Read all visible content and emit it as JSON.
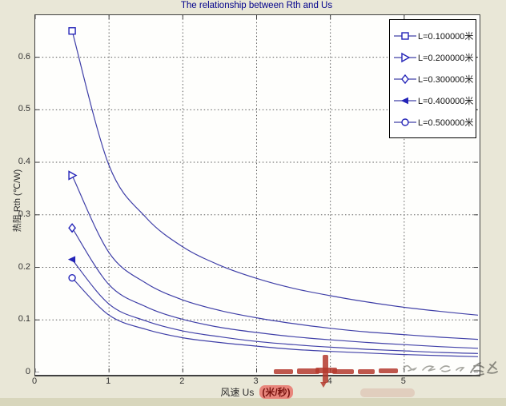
{
  "title": "The relationship between Rth and Us",
  "colors": {
    "figure_bg": "#e9e7d7",
    "figure_bg_bottom": "#d8d6bc",
    "plot_bg": "#fefefc",
    "grid": "#5c5c5c",
    "axis": "#404040",
    "curve": "#4040a8",
    "marker": "#2424b8",
    "title_color": "#00008b",
    "tick_text": "#333333",
    "legend_bg": "#ffffff",
    "watermark_red": "#b43a2e",
    "unit_highlight_bg": "#e8867c",
    "unit_highlight_text": "#7a1410",
    "watermark_gray": "#77776e"
  },
  "axes": {
    "ylabel": "热阻  Rth (℃/W)",
    "xlabel_prefix": "风速  Us",
    "xlabel_unit": "(米/秒)",
    "x_ticks": [
      0,
      1,
      2,
      3,
      4,
      5
    ],
    "y_ticks": [
      0,
      0.1,
      0.2,
      0.3,
      0.4,
      0.5,
      0.6
    ]
  },
  "chart_data": {
    "type": "line",
    "title": "The relationship between Rth and Us",
    "xlabel": "风速 Us (米/秒)",
    "ylabel": "热阻 Rth (℃/W)",
    "xlim": [
      0,
      6
    ],
    "ylim": [
      0,
      0.68
    ],
    "grid": true,
    "legend_position": "top-right",
    "x": [
      0.5,
      1,
      1.5,
      2,
      2.5,
      3,
      3.5,
      4,
      4.5,
      5,
      5.5,
      6
    ],
    "series": [
      {
        "name": "L=0.100000米",
        "marker": "square",
        "values": [
          0.65,
          0.394,
          0.295,
          0.239,
          0.204,
          0.179,
          0.16,
          0.146,
          0.134,
          0.124,
          0.116,
          0.109
        ]
      },
      {
        "name": "L=0.200000米",
        "marker": "triangle-right",
        "values": [
          0.375,
          0.228,
          0.17,
          0.138,
          0.118,
          0.104,
          0.093,
          0.084,
          0.077,
          0.072,
          0.067,
          0.063
        ]
      },
      {
        "name": "L=0.300000米",
        "marker": "diamond",
        "values": [
          0.275,
          0.167,
          0.125,
          0.101,
          0.086,
          0.076,
          0.068,
          0.062,
          0.057,
          0.053,
          0.049,
          0.046
        ]
      },
      {
        "name": "L=0.400000米",
        "marker": "triangle-left",
        "values": [
          0.215,
          0.13,
          0.098,
          0.079,
          0.068,
          0.059,
          0.053,
          0.048,
          0.044,
          0.041,
          0.038,
          0.036
        ]
      },
      {
        "name": "L=0.500000米",
        "marker": "circle",
        "values": [
          0.18,
          0.109,
          0.082,
          0.066,
          0.057,
          0.05,
          0.044,
          0.04,
          0.037,
          0.034,
          0.032,
          0.03
        ]
      }
    ]
  },
  "watermarks": {
    "red_dashes": [
      [
        342,
        462,
        24,
        6
      ],
      [
        371,
        461,
        28,
        7
      ],
      [
        415,
        462,
        27,
        6
      ],
      [
        447,
        462,
        21,
        6
      ],
      [
        473,
        461,
        24,
        6
      ]
    ],
    "red_cross_stem": [
      403,
      444,
      7,
      35
    ],
    "red_cross_bar": [
      394,
      460,
      27,
      7
    ],
    "red_cross_tip": [
      400,
      478
    ],
    "red_smudge": [
      450,
      486,
      68,
      11
    ]
  }
}
